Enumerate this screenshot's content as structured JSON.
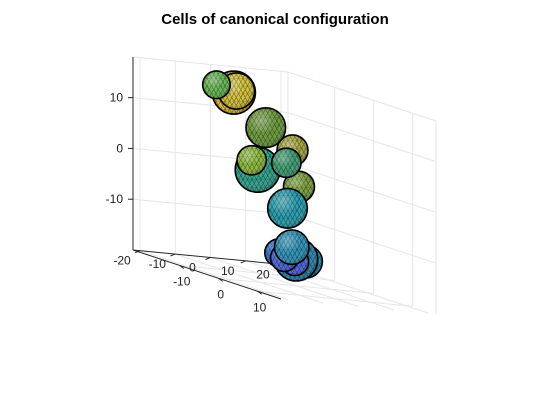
{
  "chart_data": {
    "type": "scatter",
    "title": "Cells of canonical configuration",
    "xlabel": "",
    "ylabel": "",
    "zlabel": "",
    "grid": true,
    "view": "3d-isometric",
    "colormap": "parula",
    "xlim": [
      -22,
      16
    ],
    "ylim": [
      -22,
      22
    ],
    "zlim": [
      -20,
      18
    ],
    "xticks": [
      -10,
      0,
      10
    ],
    "yticks": [
      -20,
      -10,
      0,
      10,
      20
    ],
    "zticks": [
      -10,
      0,
      10
    ],
    "xtick_labels": [
      "-10",
      "0",
      "10"
    ],
    "ytick_labels": [
      "-20",
      "-10",
      "0",
      "10",
      "20"
    ],
    "ztick_labels": [
      "-10",
      "0",
      "10"
    ],
    "spheres": [
      {
        "x": -6,
        "y": -2,
        "z": 9.5,
        "r": 4.6,
        "color": "#6b9b3a"
      },
      {
        "x": -6,
        "y": -6,
        "z": 2.8,
        "r": 3.4,
        "color": "#8cbc3a"
      },
      {
        "x": -16,
        "y": 0,
        "z": 14.0,
        "r": 5.0,
        "color": "#ddb535"
      },
      {
        "x": -9,
        "y": -7,
        "z": 15.6,
        "r": 4.2,
        "color": "#d2c036"
      },
      {
        "x": -10,
        "y": 10,
        "z": 4.8,
        "r": 3.6,
        "color": "#a7a43b"
      },
      {
        "x": -6,
        "y": -16,
        "z": 17.0,
        "r": 3.2,
        "color": "#67b752"
      },
      {
        "x": -9,
        "y": -1,
        "z": 0.5,
        "r": 5.2,
        "color": "#2fa38d"
      },
      {
        "x": -2,
        "y": 3,
        "z": -0.8,
        "r": 3.6,
        "color": "#7ba03b"
      },
      {
        "x": 2,
        "y": -5,
        "z": 4.4,
        "r": 3.4,
        "color": "#3e9f73"
      },
      {
        "x": -2,
        "y": 5,
        "z": -15.4,
        "r": 3.8,
        "color": "#2390b4"
      },
      {
        "x": 0,
        "y": 0,
        "z": -14.8,
        "r": 5.0,
        "color": "#2687b3"
      },
      {
        "x": 0,
        "y": -5,
        "z": -13.8,
        "r": 3.2,
        "color": "#3872d2"
      },
      {
        "x": 5,
        "y": -8,
        "z": -4.0,
        "r": 4.6,
        "color": "#259eb0"
      },
      {
        "x": 6,
        "y": -7,
        "z": -14.2,
        "r": 3.2,
        "color": "#4a64e2"
      },
      {
        "x": 6,
        "y": -10,
        "z": -13.6,
        "r": 3.2,
        "color": "#4868e0"
      },
      {
        "x": 7,
        "y": -9,
        "z": -11.2,
        "r": 4.0,
        "color": "#2b93b8"
      }
    ]
  }
}
